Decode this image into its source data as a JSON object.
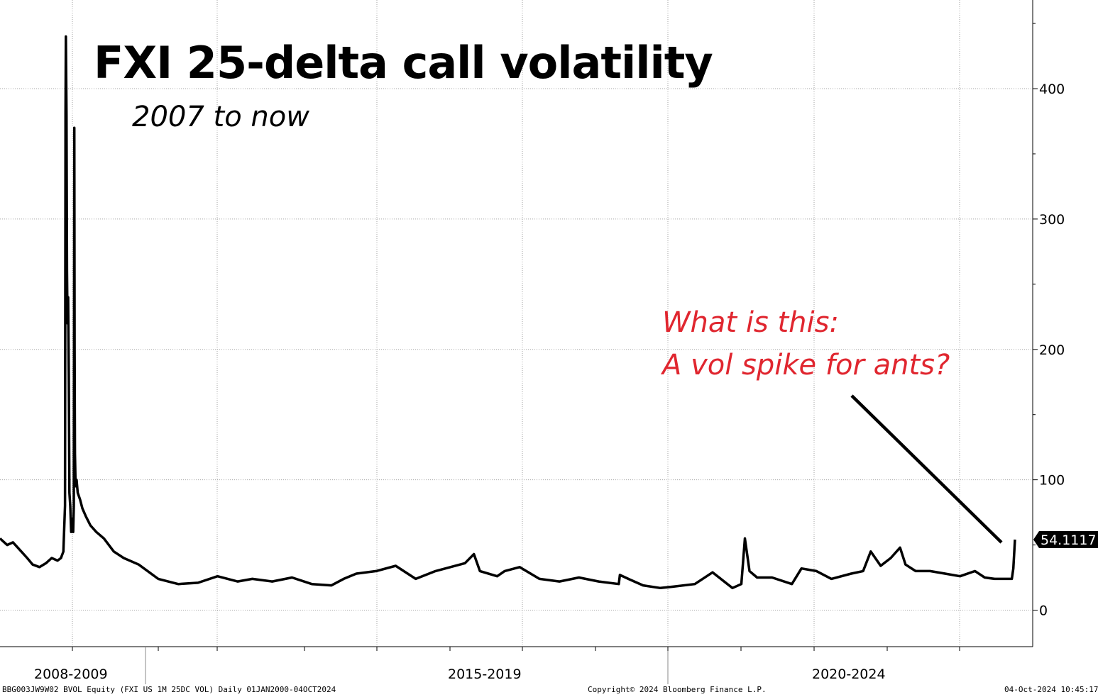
{
  "title": "FXI 25-delta call volatility",
  "subtitle": "2007 to now",
  "annotation": {
    "line1": "What is this:",
    "line2": "A vol spike for ants?"
  },
  "footer": {
    "left": "BBG003JW9W02 BVOL Equity (FXI US 1M 25DC VOL)  Daily 01JAN2000-04OCT2024",
    "center": "Copyright© 2024 Bloomberg Finance L.P.",
    "right": "04-Oct-2024 10:45:17"
  },
  "colors": {
    "line": "#000000",
    "annotation": "#e0262f",
    "grid": "#a6a6a6"
  },
  "chart_data": {
    "type": "line",
    "title": "FXI 25-delta call volatility",
    "subtitle": "2007 to now",
    "ylim": [
      -28,
      468
    ],
    "yticks": [
      0,
      100,
      200,
      300,
      400
    ],
    "period_labels": [
      "2008-2009",
      "2015-2019",
      "2020-2024"
    ],
    "xlim": [
      "2007-09-01",
      "2024-10-04"
    ],
    "last_value_label": "54.1117",
    "grid": "dotted",
    "series": [
      {
        "x": [
          "2007-09-01",
          "2007-10-15",
          "2007-11-20",
          "2008-01-10",
          "2008-02-15",
          "2008-03-20",
          "2008-05-01",
          "2008-06-10",
          "2008-07-15",
          "2008-08-20",
          "2008-09-10",
          "2008-09-25",
          "2008-10-05",
          "2008-10-08",
          "2008-10-10",
          "2008-10-14",
          "2008-10-17",
          "2008-10-20",
          "2008-10-24",
          "2008-10-28",
          "2008-11-01",
          "2008-11-06",
          "2008-11-12",
          "2008-11-18",
          "2008-11-24",
          "2008-11-28",
          "2008-12-01",
          "2008-12-03",
          "2008-12-05",
          "2008-12-09",
          "2008-12-15",
          "2008-12-22",
          "2009-01-05",
          "2009-01-20",
          "2009-02-10",
          "2009-03-10",
          "2009-04-15",
          "2009-06-01",
          "2009-08-01",
          "2009-10-01",
          "2010-01-01",
          "2010-05-01",
          "2010-09-01",
          "2011-01-01",
          "2011-05-01",
          "2011-09-01",
          "2011-12-01",
          "2012-04-01",
          "2012-08-01",
          "2012-12-01",
          "2013-04-01",
          "2013-06-15",
          "2013-09-01",
          "2014-01-01",
          "2014-05-01",
          "2014-09-01",
          "2015-01-01",
          "2015-07-01",
          "2015-08-25",
          "2015-10-01",
          "2016-01-15",
          "2016-03-01",
          "2016-06-01",
          "2016-10-01",
          "2017-02-01",
          "2017-06-01",
          "2017-10-01",
          "2018-02-01",
          "2018-02-08",
          "2018-04-01",
          "2018-07-01",
          "2018-10-15",
          "2019-01-01",
          "2019-05-15",
          "2019-09-01",
          "2020-01-01",
          "2020-02-25",
          "2020-03-18",
          "2020-04-15",
          "2020-06-01",
          "2020-09-01",
          "2021-01-01",
          "2021-03-01",
          "2021-06-01",
          "2021-09-01",
          "2022-01-01",
          "2022-03-15",
          "2022-05-01",
          "2022-07-01",
          "2022-09-01",
          "2022-10-28",
          "2022-12-01",
          "2023-02-01",
          "2023-05-01",
          "2023-08-01",
          "2023-11-01",
          "2024-02-01",
          "2024-04-01",
          "2024-06-01",
          "2024-09-15",
          "2024-09-24",
          "2024-10-04"
        ],
        "y": [
          55,
          50,
          52,
          45,
          40,
          35,
          33,
          36,
          40,
          38,
          40,
          45,
          80,
          380,
          440,
          380,
          260,
          220,
          240,
          180,
          90,
          80,
          60,
          70,
          60,
          80,
          370,
          200,
          120,
          95,
          100,
          90,
          85,
          78,
          72,
          65,
          60,
          55,
          45,
          40,
          35,
          24,
          20,
          21,
          26,
          22,
          24,
          22,
          25,
          20,
          19,
          24,
          28,
          30,
          34,
          24,
          30,
          36,
          43,
          30,
          26,
          30,
          33,
          24,
          22,
          25,
          22,
          20,
          27,
          24,
          19,
          17,
          18,
          20,
          29,
          17,
          20,
          55,
          30,
          25,
          25,
          20,
          32,
          30,
          24,
          28,
          30,
          45,
          34,
          40,
          48,
          35,
          30,
          30,
          28,
          26,
          30,
          25,
          24,
          24,
          32,
          54.1117
        ]
      }
    ]
  }
}
